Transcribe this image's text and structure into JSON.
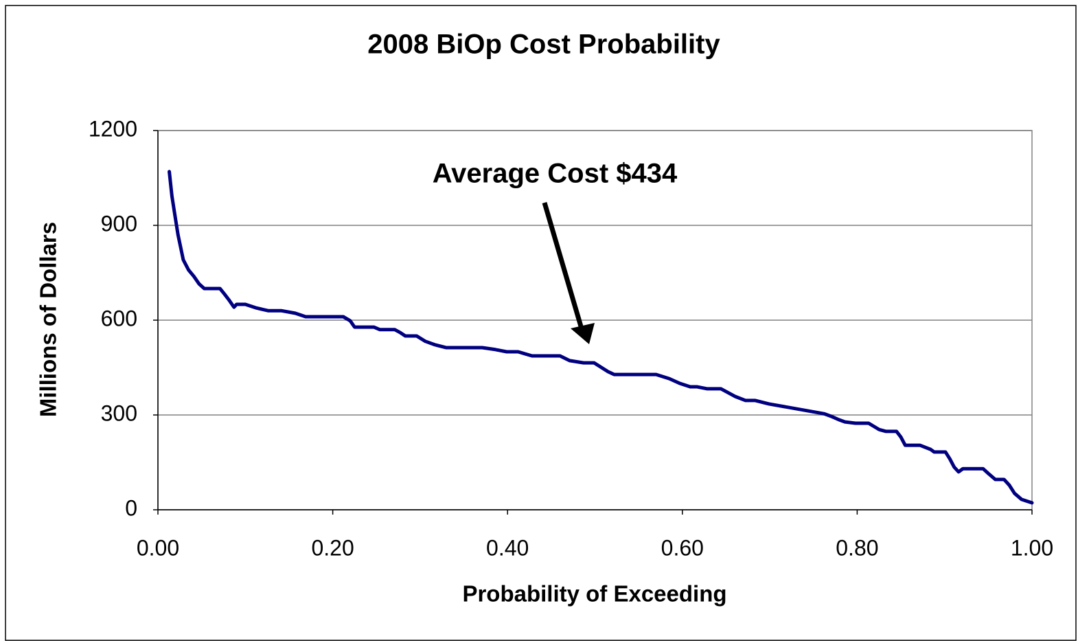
{
  "chart_data": {
    "type": "line",
    "title": "2008 BiOp Cost Probability",
    "x_label": "Probability of Exceeding",
    "y_label": "Millions of Dollars",
    "annotation": "Average Cost $434",
    "xlim": [
      0,
      1
    ],
    "ylim": [
      0,
      1200
    ],
    "xticks": [
      {
        "value": 0,
        "label": "0.00"
      },
      {
        "value": 0.2,
        "label": "0.20"
      },
      {
        "value": 0.4,
        "label": "0.40"
      },
      {
        "value": 0.6,
        "label": "0.60"
      },
      {
        "value": 0.8,
        "label": "0.80"
      },
      {
        "value": 1,
        "label": "1.00"
      }
    ],
    "yticks": [
      0,
      300,
      600,
      900,
      1200
    ],
    "grid": true,
    "series": [
      {
        "color": "#000080",
        "x": [
          0.013,
          0.016,
          0.02,
          0.023,
          0.029,
          0.035,
          0.041,
          0.047,
          0.053,
          0.071,
          0.076,
          0.081,
          0.087,
          0.09,
          0.1,
          0.112,
          0.126,
          0.141,
          0.157,
          0.169,
          0.212,
          0.22,
          0.225,
          0.247,
          0.254,
          0.271,
          0.277,
          0.283,
          0.296,
          0.306,
          0.317,
          0.33,
          0.371,
          0.386,
          0.399,
          0.412,
          0.428,
          0.46,
          0.471,
          0.487,
          0.499,
          0.515,
          0.522,
          0.57,
          0.585,
          0.597,
          0.609,
          0.617,
          0.628,
          0.644,
          0.66,
          0.672,
          0.683,
          0.699,
          0.762,
          0.77,
          0.779,
          0.786,
          0.798,
          0.813,
          0.825,
          0.833,
          0.845,
          0.85,
          0.855,
          0.872,
          0.884,
          0.888,
          0.901,
          0.906,
          0.911,
          0.916,
          0.921,
          0.944,
          0.95,
          0.958,
          0.968,
          0.974,
          0.98,
          0.988,
          1.0
        ],
        "values": [
          1070,
          993,
          922,
          870,
          791,
          759,
          739,
          715,
          700,
          700,
          683,
          665,
          641,
          650,
          650,
          639,
          630,
          630,
          622,
          611,
          611,
          598,
          578,
          578,
          570,
          570,
          561,
          550,
          550,
          533,
          522,
          513,
          513,
          507,
          500,
          500,
          487,
          487,
          472,
          465,
          465,
          437,
          428,
          428,
          415,
          400,
          389,
          389,
          383,
          383,
          359,
          346,
          346,
          335,
          304,
          296,
          285,
          278,
          274,
          274,
          254,
          248,
          248,
          230,
          204,
          204,
          191,
          183,
          183,
          161,
          135,
          120,
          130,
          130,
          115,
          96,
          96,
          78,
          52,
          33,
          22
        ]
      }
    ]
  }
}
